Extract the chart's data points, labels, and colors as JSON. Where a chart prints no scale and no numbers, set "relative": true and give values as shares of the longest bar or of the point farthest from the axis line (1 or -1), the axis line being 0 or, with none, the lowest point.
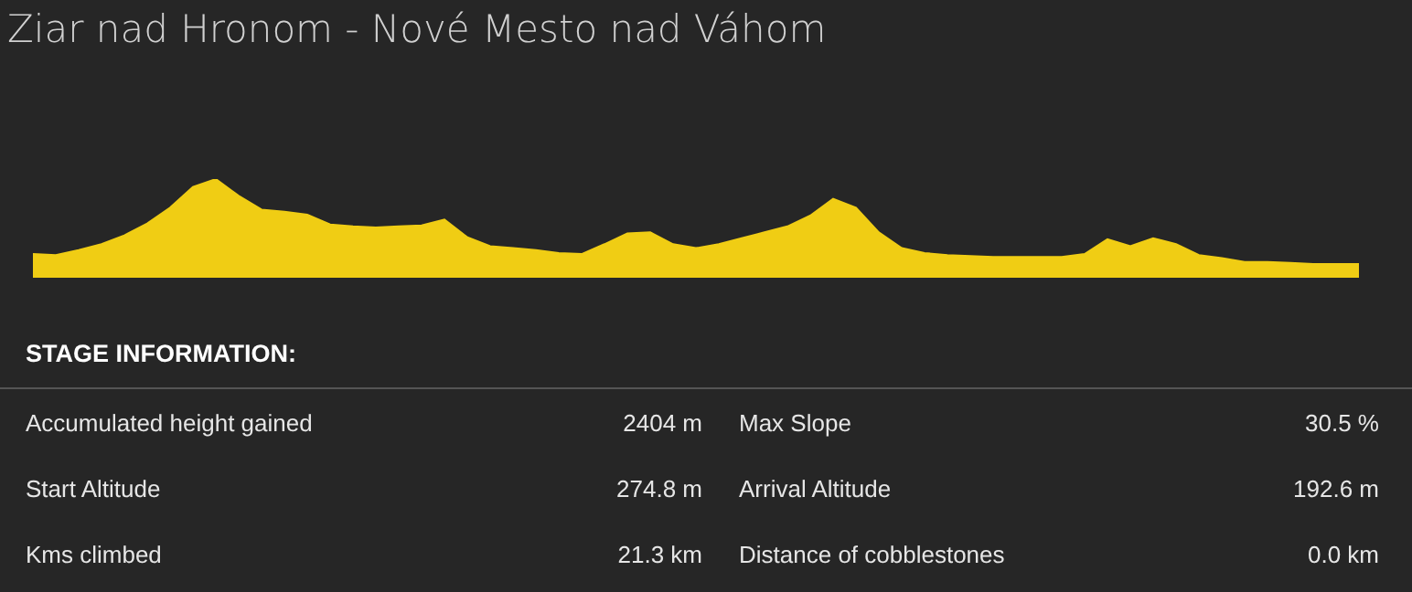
{
  "chart_data": [
    {
      "type": "area",
      "title": "Ziar nad Hronom - Nové Mesto nad Váhom",
      "relative": true,
      "color": "#f0cd14",
      "categories": [
        null,
        null,
        null,
        null,
        null,
        null,
        null,
        null,
        null,
        null,
        null,
        null,
        null,
        null,
        null,
        null,
        null,
        null,
        null,
        null,
        null,
        null,
        null,
        null,
        null,
        null,
        null,
        null,
        null,
        null,
        null,
        null,
        null,
        null,
        null,
        null,
        null,
        null,
        null,
        null,
        null,
        null,
        null,
        null,
        null,
        null,
        null,
        null,
        null,
        null,
        null,
        null,
        null,
        null,
        null,
        null,
        null,
        null,
        null
      ],
      "values": [
        0.24,
        0.23,
        0.28,
        0.34,
        0.43,
        0.55,
        0.71,
        0.92,
        1,
        0.83,
        0.69,
        0.67,
        0.64,
        0.54,
        0.52,
        0.51,
        0.52,
        0.53,
        0.59,
        0.41,
        0.32,
        0.3,
        0.28,
        0.25,
        0.24,
        0.34,
        0.45,
        0.46,
        0.34,
        0.3,
        0.34,
        0.4,
        0.46,
        0.52,
        0.63,
        0.8,
        0.71,
        0.46,
        0.3,
        0.25,
        0.23,
        0.22,
        0.21,
        0.21,
        0.21,
        0.21,
        0.24,
        0.39,
        0.32,
        0.4,
        0.34,
        0.23,
        0.2,
        0.16,
        0.16,
        0.15,
        0.14,
        0.14,
        0.14
      ]
    },
    {
      "type": "other",
      "title": "STAGE INFORMATION:",
      "annotations": [
        "Accumulated height gained",
        "2404 m",
        "Max Slope",
        "30.5 %",
        "Start Altitude",
        "274.8 m",
        "Arrival Altitude",
        "192.6 m",
        "Kms climbed",
        "21.3 km",
        "Distance of cobblestones",
        "0.0 km"
      ]
    }
  ]
}
